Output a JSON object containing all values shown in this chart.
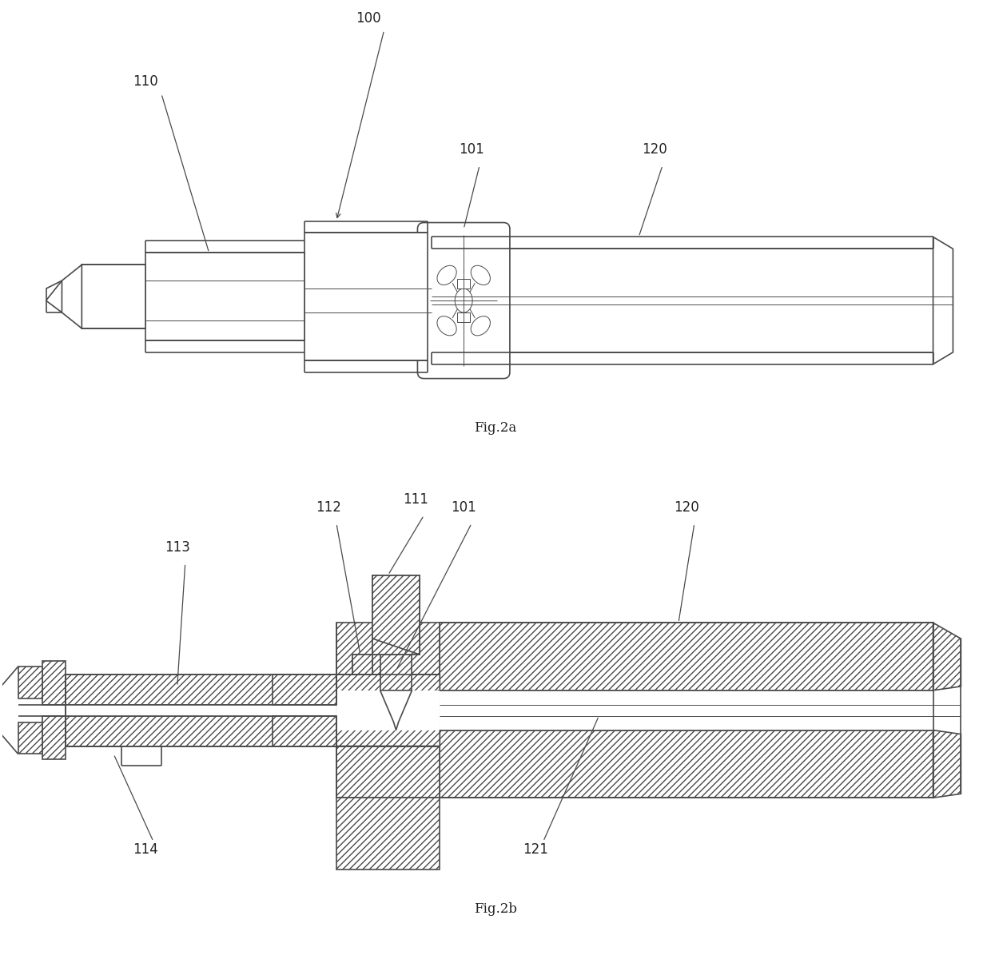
{
  "fig_width": 12.4,
  "fig_height": 12.25,
  "bg": "#ffffff",
  "lc": "#4a4a4a",
  "lw": 1.2,
  "lw_thin": 0.7,
  "fs_label": 12,
  "fs_caption": 12
}
